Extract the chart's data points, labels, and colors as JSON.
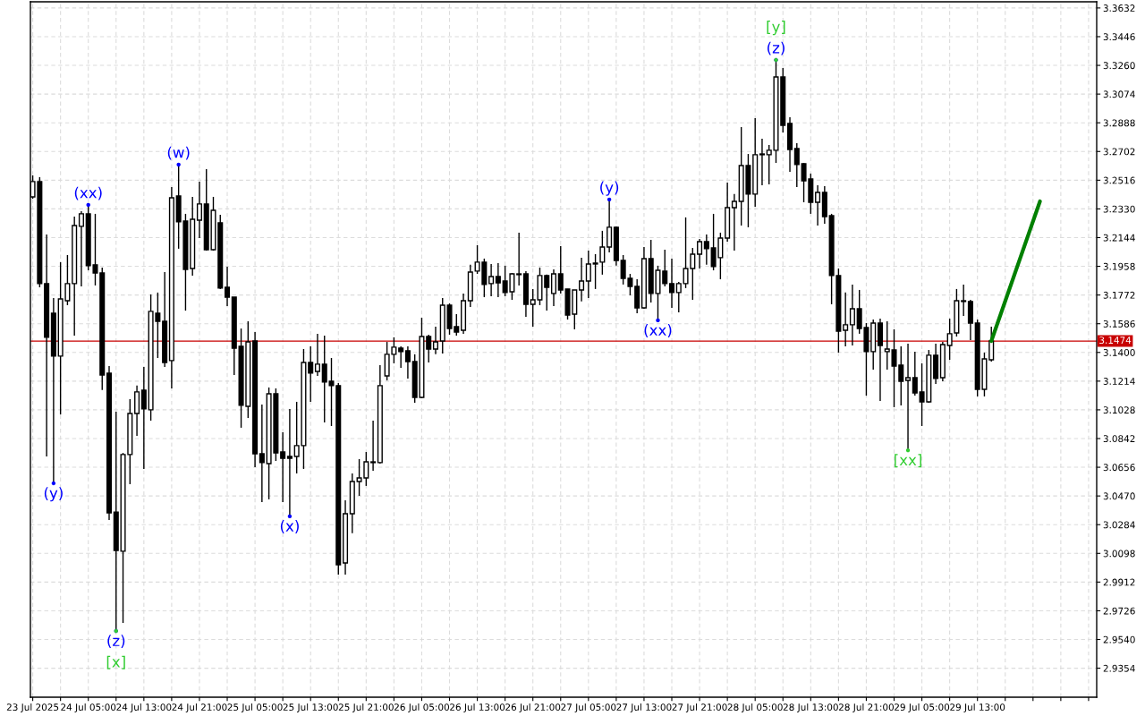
{
  "chart_data": {
    "type": "candlestick",
    "color": "#000000",
    "grid": true,
    "x": [
      "2025-07-23T21:00",
      "2025-07-23T22:00",
      "2025-07-23T23:00",
      "2025-07-24T00:00",
      "2025-07-24T01:00",
      "2025-07-24T02:00",
      "2025-07-24T03:00",
      "2025-07-24T04:00",
      "2025-07-24T05:00",
      "2025-07-24T06:00",
      "2025-07-24T07:00",
      "2025-07-24T08:00",
      "2025-07-24T09:00",
      "2025-07-24T10:00",
      "2025-07-24T11:00",
      "2025-07-24T12:00",
      "2025-07-24T13:00",
      "2025-07-24T14:00",
      "2025-07-24T15:00",
      "2025-07-24T16:00",
      "2025-07-24T17:00",
      "2025-07-24T18:00",
      "2025-07-24T19:00",
      "2025-07-24T20:00",
      "2025-07-24T21:00",
      "2025-07-24T22:00",
      "2025-07-24T23:00",
      "2025-07-25T00:00",
      "2025-07-25T01:00",
      "2025-07-25T02:00",
      "2025-07-25T03:00",
      "2025-07-25T04:00",
      "2025-07-25T05:00",
      "2025-07-25T06:00",
      "2025-07-25T07:00",
      "2025-07-25T08:00",
      "2025-07-25T09:00",
      "2025-07-25T10:00",
      "2025-07-25T11:00",
      "2025-07-25T12:00",
      "2025-07-25T13:00",
      "2025-07-25T14:00",
      "2025-07-25T15:00",
      "2025-07-25T16:00",
      "2025-07-25T17:00",
      "2025-07-25T18:00",
      "2025-07-25T19:00",
      "2025-07-25T20:00",
      "2025-07-25T21:00",
      "2025-07-25T22:00",
      "2025-07-25T23:00",
      "2025-07-26T00:00",
      "2025-07-26T01:00",
      "2025-07-26T02:00",
      "2025-07-26T03:00",
      "2025-07-26T04:00",
      "2025-07-26T05:00",
      "2025-07-26T06:00",
      "2025-07-26T07:00",
      "2025-07-26T08:00",
      "2025-07-26T09:00",
      "2025-07-26T10:00",
      "2025-07-26T11:00",
      "2025-07-26T12:00",
      "2025-07-26T13:00",
      "2025-07-26T14:00",
      "2025-07-26T15:00",
      "2025-07-26T16:00",
      "2025-07-26T17:00",
      "2025-07-26T18:00",
      "2025-07-26T19:00",
      "2025-07-26T20:00",
      "2025-07-26T21:00",
      "2025-07-26T22:00",
      "2025-07-26T23:00",
      "2025-07-27T00:00",
      "2025-07-27T01:00",
      "2025-07-27T02:00",
      "2025-07-27T03:00",
      "2025-07-27T04:00",
      "2025-07-27T05:00",
      "2025-07-27T06:00",
      "2025-07-27T07:00",
      "2025-07-27T08:00",
      "2025-07-27T09:00",
      "2025-07-27T10:00",
      "2025-07-27T11:00",
      "2025-07-27T12:00",
      "2025-07-27T13:00",
      "2025-07-27T14:00",
      "2025-07-27T15:00",
      "2025-07-27T16:00",
      "2025-07-27T17:00",
      "2025-07-27T18:00",
      "2025-07-27T19:00",
      "2025-07-27T20:00",
      "2025-07-27T21:00",
      "2025-07-27T22:00",
      "2025-07-27T23:00",
      "2025-07-28T00:00",
      "2025-07-28T01:00",
      "2025-07-28T02:00",
      "2025-07-28T03:00",
      "2025-07-28T04:00",
      "2025-07-28T05:00",
      "2025-07-28T06:00",
      "2025-07-28T07:00",
      "2025-07-28T08:00",
      "2025-07-28T09:00",
      "2025-07-28T10:00",
      "2025-07-28T11:00",
      "2025-07-28T12:00",
      "2025-07-28T13:00",
      "2025-07-28T14:00",
      "2025-07-28T15:00",
      "2025-07-28T16:00",
      "2025-07-28T17:00",
      "2025-07-28T18:00",
      "2025-07-28T19:00",
      "2025-07-28T20:00",
      "2025-07-28T21:00",
      "2025-07-28T22:00",
      "2025-07-28T23:00",
      "2025-07-29T00:00",
      "2025-07-29T01:00",
      "2025-07-29T02:00",
      "2025-07-29T03:00",
      "2025-07-29T04:00",
      "2025-07-29T05:00",
      "2025-07-29T06:00",
      "2025-07-29T07:00",
      "2025-07-29T08:00",
      "2025-07-29T09:00",
      "2025-07-29T10:00",
      "2025-07-29T11:00",
      "2025-07-29T12:00",
      "2025-07-29T13:00",
      "2025-07-29T14:00",
      "2025-07-29T15:00"
    ],
    "ohlc": [
      [
        3.2408,
        3.2547,
        3.2396,
        3.2507
      ],
      [
        3.2507,
        3.2536,
        3.1822,
        3.1846
      ],
      [
        3.1846,
        3.2164,
        3.0726,
        3.1498
      ],
      [
        3.1654,
        3.1753,
        3.0552,
        3.1376
      ],
      [
        3.1376,
        3.1985,
        3.0998,
        3.1747
      ],
      [
        3.1735,
        3.2031,
        3.1706,
        3.1846
      ],
      [
        3.1846,
        3.228,
        3.1509,
        3.2222
      ],
      [
        3.2217,
        3.2315,
        3.1828,
        3.2298
      ],
      [
        3.2298,
        3.2356,
        3.1932,
        3.1962
      ],
      [
        3.1968,
        3.2298,
        3.1834,
        3.1915
      ],
      [
        3.1915,
        3.195,
        3.1156,
        3.1254
      ],
      [
        3.1266,
        3.1312,
        3.0314,
        3.0361
      ],
      [
        3.0366,
        3.1016,
        2.9595,
        3.0117
      ],
      [
        3.0112,
        3.0749,
        2.9647,
        3.0738
      ],
      [
        3.0738,
        3.1097,
        3.0546,
        3.1004
      ],
      [
        3.1004,
        3.1185,
        3.0859,
        3.1144
      ],
      [
        3.1156,
        3.1306,
        3.0645,
        3.1034
      ],
      [
        3.1028,
        3.1776,
        3.0958,
        3.1666
      ],
      [
        3.1654,
        3.1788,
        3.1364,
        3.1602
      ],
      [
        3.1602,
        3.1921,
        3.1306,
        3.1335
      ],
      [
        3.1347,
        3.2472,
        3.1167,
        3.2402
      ],
      [
        3.2414,
        3.2617,
        3.2072,
        3.2246
      ],
      [
        3.2251,
        3.2298,
        3.1671,
        3.1938
      ],
      [
        3.1944,
        3.2408,
        3.1898,
        3.2263
      ],
      [
        3.2257,
        3.2507,
        3.2141,
        3.2362
      ],
      [
        3.2362,
        3.2588,
        3.206,
        3.2066
      ],
      [
        3.2066,
        3.2408,
        3.206,
        3.2321
      ],
      [
        3.224,
        3.2292,
        3.1811,
        3.1817
      ],
      [
        3.1822,
        3.1956,
        3.17,
        3.1758
      ],
      [
        3.1758,
        3.1758,
        3.1254,
        3.1428
      ],
      [
        3.144,
        3.1555,
        3.0912,
        3.1057
      ],
      [
        3.1051,
        3.1602,
        3.0975,
        3.1468
      ],
      [
        3.1474,
        3.1532,
        3.0657,
        3.0743
      ],
      [
        3.0743,
        3.1062,
        3.043,
        3.0686
      ],
      [
        3.068,
        3.1173,
        3.0448,
        3.1132
      ],
      [
        3.1132,
        3.1167,
        3.0697,
        3.0749
      ],
      [
        3.0755,
        3.0883,
        3.043,
        3.0714
      ],
      [
        3.0726,
        3.1034,
        3.0338,
        3.0714
      ],
      [
        3.0726,
        3.108,
        3.0616,
        3.0796
      ],
      [
        3.0796,
        3.1422,
        3.0645,
        3.1335
      ],
      [
        3.1335,
        3.144,
        3.108,
        3.1266
      ],
      [
        3.1277,
        3.1521,
        3.1248,
        3.1324
      ],
      [
        3.1324,
        3.1509,
        3.0946,
        3.1208
      ],
      [
        3.1213,
        3.1364,
        3.0923,
        3.1185
      ],
      [
        3.1185,
        3.1202,
        2.996,
        3.0024
      ],
      [
        3.0036,
        3.0442,
        2.996,
        3.0355
      ],
      [
        3.0355,
        3.0616,
        3.0228,
        3.0564
      ],
      [
        3.0564,
        3.0709,
        3.0471,
        3.0587
      ],
      [
        3.0587,
        3.0755,
        3.0535,
        3.0691
      ],
      [
        3.0686,
        3.0958,
        3.0633,
        3.0691
      ],
      [
        3.0686,
        3.1318,
        3.068,
        3.1185
      ],
      [
        3.1248,
        3.1468,
        3.1219,
        3.1388
      ],
      [
        3.1388,
        3.1498,
        3.1329,
        3.1434
      ],
      [
        3.1428,
        3.144,
        3.13,
        3.1405
      ],
      [
        3.1411,
        3.144,
        3.1231,
        3.1341
      ],
      [
        3.1341,
        3.1388,
        3.1074,
        3.1109
      ],
      [
        3.1109,
        3.1625,
        3.1103,
        3.1503
      ],
      [
        3.1503,
        3.1515,
        3.1335,
        3.1422
      ],
      [
        3.1422,
        3.1567,
        3.1388,
        3.1468
      ],
      [
        3.1474,
        3.1753,
        3.1393,
        3.1706
      ],
      [
        3.1706,
        3.1718,
        3.1515,
        3.1555
      ],
      [
        3.1567,
        3.1648,
        3.1509,
        3.1532
      ],
      [
        3.1544,
        3.1782,
        3.1521,
        3.1735
      ],
      [
        3.1735,
        3.1968,
        3.1695,
        3.1921
      ],
      [
        3.1927,
        3.2095,
        3.1909,
        3.1985
      ],
      [
        3.1985,
        3.2008,
        3.1758,
        3.184
      ],
      [
        3.1846,
        3.1973,
        3.1764,
        3.1892
      ],
      [
        3.1892,
        3.1979,
        3.1758,
        3.1851
      ],
      [
        3.1863,
        3.1962,
        3.1764,
        3.1788
      ],
      [
        3.1793,
        3.1915,
        3.1741,
        3.1909
      ],
      [
        3.1909,
        3.2176,
        3.1834,
        3.1904
      ],
      [
        3.1909,
        3.1927,
        3.1631,
        3.1712
      ],
      [
        3.1712,
        3.1811,
        3.1567,
        3.1741
      ],
      [
        3.1741,
        3.195,
        3.1706,
        3.1898
      ],
      [
        3.1898,
        3.1904,
        3.1671,
        3.1822
      ],
      [
        3.1782,
        3.1938,
        3.17,
        3.1909
      ],
      [
        3.1909,
        3.2089,
        3.1782,
        3.1805
      ],
      [
        3.1811,
        3.1811,
        3.1613,
        3.1642
      ],
      [
        3.1648,
        3.1805,
        3.155,
        3.1805
      ],
      [
        3.1805,
        3.2014,
        3.173,
        3.1863
      ],
      [
        3.1863,
        3.206,
        3.1753,
        3.1973
      ],
      [
        3.1973,
        3.2037,
        3.1811,
        3.1979
      ],
      [
        3.1985,
        3.2188,
        3.1904,
        3.2083
      ],
      [
        3.2083,
        3.2391,
        3.2048,
        3.2211
      ],
      [
        3.2211,
        3.2217,
        3.1962,
        3.1996
      ],
      [
        3.1996,
        3.2031,
        3.184,
        3.188
      ],
      [
        3.188,
        3.1909,
        3.177,
        3.1828
      ],
      [
        3.1828,
        3.1874,
        3.1654,
        3.1689
      ],
      [
        3.1689,
        3.2083,
        3.1683,
        3.2008
      ],
      [
        3.2008,
        3.213,
        3.1724,
        3.1782
      ],
      [
        3.1782,
        3.1962,
        3.1608,
        3.1932
      ],
      [
        3.1927,
        3.2066,
        3.1828,
        3.1846
      ],
      [
        3.1846,
        3.2008,
        3.1689,
        3.1788
      ],
      [
        3.1788,
        3.1857,
        3.166,
        3.1846
      ],
      [
        3.1846,
        3.2275,
        3.1817,
        3.1944
      ],
      [
        3.1944,
        3.2077,
        3.1741,
        3.2037
      ],
      [
        3.2037,
        3.2135,
        3.1944,
        3.2118
      ],
      [
        3.2118,
        3.2164,
        3.1968,
        3.2072
      ],
      [
        3.2077,
        3.2298,
        3.1932,
        3.1956
      ],
      [
        3.2014,
        3.2176,
        3.1874,
        3.2141
      ],
      [
        3.2141,
        3.2501,
        3.2118,
        3.2338
      ],
      [
        3.2338,
        3.2426,
        3.206,
        3.2379
      ],
      [
        3.2379,
        3.286,
        3.2222,
        3.2611
      ],
      [
        3.2611,
        3.2686,
        3.2211,
        3.2426
      ],
      [
        3.2426,
        3.2918,
        3.2344,
        3.2681
      ],
      [
        3.2681,
        3.2785,
        3.2483,
        3.2686
      ],
      [
        3.2681,
        3.2744,
        3.2489,
        3.271
      ],
      [
        3.271,
        3.3295,
        3.2628,
        3.3185
      ],
      [
        3.3185,
        3.3243,
        3.2826,
        3.2872
      ],
      [
        3.2884,
        3.2924,
        3.257,
        3.2715
      ],
      [
        3.2721,
        3.2756,
        3.2472,
        3.2617
      ],
      [
        3.2623,
        3.2628,
        3.2373,
        3.2512
      ],
      [
        3.2524,
        3.2559,
        3.2298,
        3.2373
      ],
      [
        3.2373,
        3.2483,
        3.2222,
        3.2437
      ],
      [
        3.2437,
        3.2478,
        3.2234,
        3.228
      ],
      [
        3.2286,
        3.2298,
        3.1712,
        3.1898
      ],
      [
        3.1898,
        3.1944,
        3.1399,
        3.1538
      ],
      [
        3.1544,
        3.1788,
        3.144,
        3.1579
      ],
      [
        3.1579,
        3.184,
        3.1445,
        3.1683
      ],
      [
        3.1683,
        3.1805,
        3.1521,
        3.1555
      ],
      [
        3.1561,
        3.159,
        3.112,
        3.1405
      ],
      [
        3.1405,
        3.1613,
        3.1289,
        3.159
      ],
      [
        3.159,
        3.1619,
        3.1086,
        3.1445
      ],
      [
        3.1405,
        3.1602,
        3.1289,
        3.1422
      ],
      [
        3.1416,
        3.155,
        3.1045,
        3.1312
      ],
      [
        3.1318,
        3.144,
        3.1057,
        3.1213
      ],
      [
        3.1219,
        3.1457,
        3.0766,
        3.1236
      ],
      [
        3.1236,
        3.1405,
        3.112,
        3.1138
      ],
      [
        3.1144,
        3.1329,
        3.0923,
        3.108
      ],
      [
        3.108,
        3.1416,
        3.1074,
        3.1382
      ],
      [
        3.1382,
        3.1457,
        3.1196,
        3.1231
      ],
      [
        3.1236,
        3.1468,
        3.1213,
        3.1451
      ],
      [
        3.1445,
        3.1619,
        3.1352,
        3.1521
      ],
      [
        3.1526,
        3.1811,
        3.1503,
        3.1735
      ],
      [
        3.173,
        3.184,
        3.1637,
        3.1735
      ],
      [
        3.173,
        3.1741,
        3.148,
        3.159
      ],
      [
        3.159,
        3.1613,
        3.1115,
        3.1161
      ],
      [
        3.1161,
        3.1399,
        3.1115,
        3.1358
      ],
      [
        3.1352,
        3.1567,
        3.1341,
        3.1474
      ]
    ],
    "series": [
      {
        "type": "line",
        "color": "#008000",
        "x": [
          "2025-07-29T15:00",
          "2025-07-29T22:00"
        ],
        "values": [
          3.1474,
          3.2379
        ]
      },
      {
        "type": "scatter",
        "marker": "circle",
        "color": "#0000ff",
        "x": [
          "2025-07-24T00:00",
          "2025-07-24T05:00",
          "2025-07-24T18:00",
          "2025-07-24T09:00",
          "2025-07-25T10:00",
          "2025-07-27T08:00",
          "2025-07-27T15:00",
          "2025-07-28T08:00"
        ],
        "values": [
          3.0552,
          3.2356,
          3.2617,
          2.9595,
          3.0338,
          3.2391,
          3.1608,
          3.3295
        ],
        "value_labels": [
          "(y)",
          "(xx)",
          "(w)",
          "(z)",
          "(x)",
          "(y)",
          "(xx)",
          "(z)"
        ]
      },
      {
        "type": "scatter",
        "marker": "circle",
        "color": "#32cd32",
        "x": [
          "2025-07-24T09:00",
          "2025-07-28T08:00",
          "2025-07-29T03:00"
        ],
        "values": [
          2.9595,
          3.3295,
          3.0766
        ],
        "value_labels": [
          "[x]",
          "[y]",
          "[xx]"
        ]
      }
    ],
    "ref_lines": [
      {
        "axis": "y",
        "value": 3.1474,
        "label": "3.1474",
        "color": "#c80000"
      }
    ],
    "xlim": [
      "2025-07-23T20:40",
      "2025-07-30T06:10"
    ],
    "xticks": [
      {
        "value": "2025-07-23T21:00",
        "label": "23 Jul 2025"
      },
      {
        "value": "2025-07-24T01:00",
        "label": null
      },
      {
        "value": "2025-07-24T05:00",
        "label": "24 Jul 05:00"
      },
      {
        "value": "2025-07-24T09:00",
        "label": null
      },
      {
        "value": "2025-07-24T13:00",
        "label": "24 Jul 13:00"
      },
      {
        "value": "2025-07-24T17:00",
        "label": null
      },
      {
        "value": "2025-07-24T21:00",
        "label": "24 Jul 21:00"
      },
      {
        "value": "2025-07-25T01:00",
        "label": null
      },
      {
        "value": "2025-07-25T05:00",
        "label": "25 Jul 05:00"
      },
      {
        "value": "2025-07-25T09:00",
        "label": null
      },
      {
        "value": "2025-07-25T13:00",
        "label": "25 Jul 13:00"
      },
      {
        "value": "2025-07-25T17:00",
        "label": null
      },
      {
        "value": "2025-07-25T21:00",
        "label": "25 Jul 21:00"
      },
      {
        "value": "2025-07-26T01:00",
        "label": null
      },
      {
        "value": "2025-07-26T05:00",
        "label": "26 Jul 05:00"
      },
      {
        "value": "2025-07-26T09:00",
        "label": null
      },
      {
        "value": "2025-07-26T13:00",
        "label": "26 Jul 13:00"
      },
      {
        "value": "2025-07-26T17:00",
        "label": null
      },
      {
        "value": "2025-07-26T21:00",
        "label": "26 Jul 21:00"
      },
      {
        "value": "2025-07-27T01:00",
        "label": null
      },
      {
        "value": "2025-07-27T05:00",
        "label": "27 Jul 05:00"
      },
      {
        "value": "2025-07-27T09:00",
        "label": null
      },
      {
        "value": "2025-07-27T13:00",
        "label": "27 Jul 13:00"
      },
      {
        "value": "2025-07-27T17:00",
        "label": null
      },
      {
        "value": "2025-07-27T21:00",
        "label": "27 Jul 21:00"
      },
      {
        "value": "2025-07-28T01:00",
        "label": null
      },
      {
        "value": "2025-07-28T05:00",
        "label": "28 Jul 05:00"
      },
      {
        "value": "2025-07-28T09:00",
        "label": null
      },
      {
        "value": "2025-07-28T13:00",
        "label": "28 Jul 13:00"
      },
      {
        "value": "2025-07-28T17:00",
        "label": null
      },
      {
        "value": "2025-07-28T21:00",
        "label": "28 Jul 21:00"
      },
      {
        "value": "2025-07-29T01:00",
        "label": null
      },
      {
        "value": "2025-07-29T05:00",
        "label": "29 Jul 05:00"
      },
      {
        "value": "2025-07-29T09:00",
        "label": null
      },
      {
        "value": "2025-07-29T13:00",
        "label": "29 Jul 13:00"
      },
      {
        "value": "2025-07-29T17:00",
        "label": null
      },
      {
        "value": "2025-07-29T21:00",
        "label": null
      },
      {
        "value": "2025-07-30T01:00",
        "label": null
      },
      {
        "value": "2025-07-30T05:00",
        "label": null
      }
    ],
    "ylim": [
      2.9166,
      3.3672
    ],
    "yticks": [
      2.9354,
      {
        "value": 2.954,
        "label": "2.9540"
      },
      2.9726,
      2.9912,
      3.0098,
      3.0284,
      {
        "value": 3.047,
        "label": "3.0470"
      },
      3.0656,
      3.0842,
      3.1028,
      3.1214,
      {
        "value": 3.14,
        "label": "3.1400"
      },
      3.1586,
      3.1772,
      3.1958,
      3.2144,
      {
        "value": 3.233,
        "label": "3.2330"
      },
      3.2516,
      3.2702,
      3.2888,
      3.3074,
      {
        "value": 3.326,
        "label": "3.3260"
      },
      3.3446,
      3.3632
    ]
  }
}
